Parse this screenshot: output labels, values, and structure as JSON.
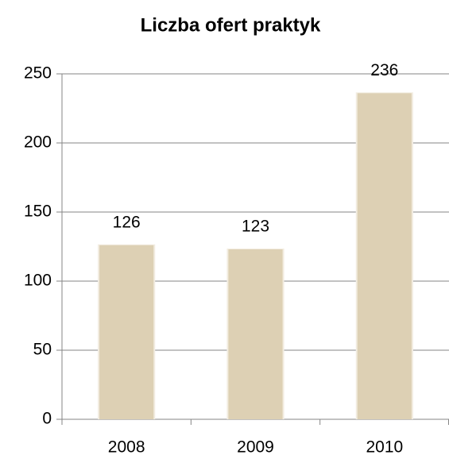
{
  "chart_data": {
    "type": "bar",
    "title": "Liczba ofert praktyk",
    "categories": [
      "2008",
      "2009",
      "2010"
    ],
    "values": [
      126,
      123,
      236
    ],
    "color": "#ddd0b4",
    "ylim": [
      0,
      250
    ],
    "yticks": [
      0,
      50,
      100,
      150,
      200,
      250
    ],
    "grid": true
  }
}
